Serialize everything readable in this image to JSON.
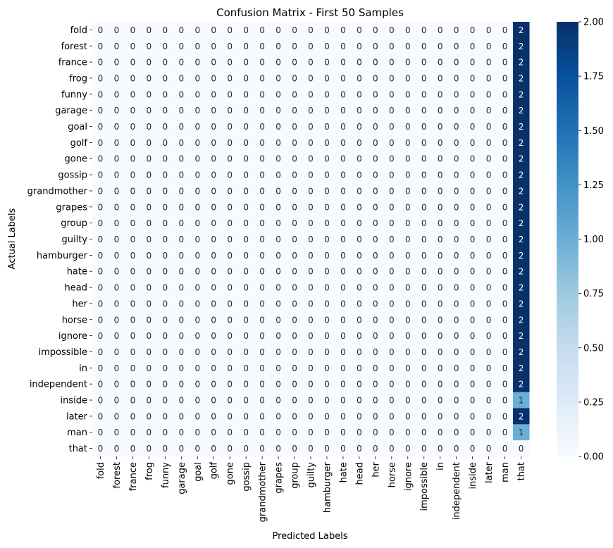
{
  "chart_data": {
    "type": "heatmap",
    "title": "Confusion Matrix - First 50 Samples",
    "xlabel": "Predicted Labels",
    "ylabel": "Actual Labels",
    "labels": [
      "fold",
      "forest",
      "france",
      "frog",
      "funny",
      "garage",
      "goal",
      "golf",
      "gone",
      "gossip",
      "grandmother",
      "grapes",
      "group",
      "guilty",
      "hamburger",
      "hate",
      "head",
      "her",
      "horse",
      "ignore",
      "impossible",
      "in",
      "independent",
      "inside",
      "later",
      "man",
      "that"
    ],
    "last_column_values": [
      2,
      2,
      2,
      2,
      2,
      2,
      2,
      2,
      2,
      2,
      2,
      2,
      2,
      2,
      2,
      2,
      2,
      2,
      2,
      2,
      2,
      2,
      2,
      1,
      2,
      1,
      0
    ],
    "colormap": "Blues",
    "vmin": 0,
    "vmax": 2,
    "colorbar_ticks": [
      "0.00",
      "0.25",
      "0.50",
      "0.75",
      "1.00",
      "1.25",
      "1.50",
      "1.75",
      "2.00"
    ]
  }
}
